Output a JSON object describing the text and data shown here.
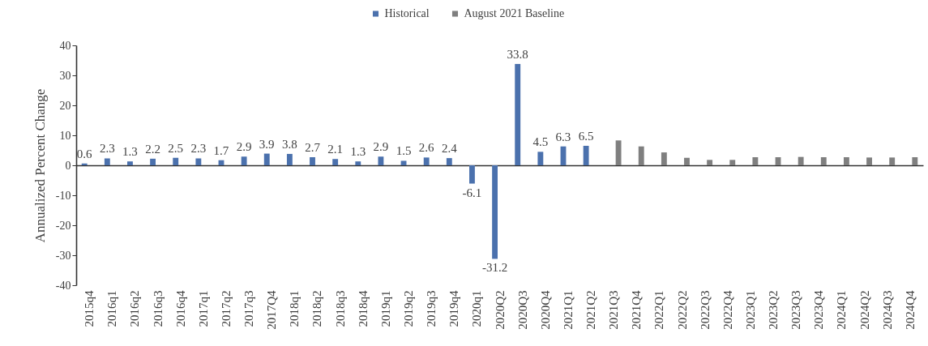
{
  "chart_data": {
    "type": "bar",
    "ylabel": "Annualized Percent Change",
    "categories": [
      "2015q4",
      "2016q1",
      "2016q2",
      "2016q3",
      "2016q4",
      "2017q1",
      "2017q2",
      "2017q3",
      "2017Q4",
      "2018q1",
      "2018q2",
      "2018q3",
      "2018q4",
      "2019q1",
      "2019q2",
      "2019q3",
      "2019q4",
      "2020q1",
      "2020Q2",
      "2020Q3",
      "2020Q4",
      "2021Q1",
      "2021Q2",
      "2021Q3",
      "2021Q4",
      "2022Q1",
      "2022Q2",
      "2022Q3",
      "2022Q4",
      "2023Q1",
      "2023Q2",
      "2023Q3",
      "2023Q4",
      "2024Q1",
      "2024Q2",
      "2024Q3",
      "2024Q4"
    ],
    "series": [
      {
        "name": "Historical",
        "color": "#4b71ad",
        "values": [
          0.6,
          2.3,
          1.3,
          2.2,
          2.5,
          2.3,
          1.7,
          2.9,
          3.9,
          3.8,
          2.7,
          2.1,
          1.3,
          2.9,
          1.5,
          2.6,
          2.4,
          -6.1,
          -31.2,
          33.8,
          4.5,
          6.3,
          6.5,
          null,
          null,
          null,
          null,
          null,
          null,
          null,
          null,
          null,
          null,
          null,
          null,
          null,
          null
        ],
        "value_labels": [
          "0.6",
          "2.3",
          "1.3",
          "2.2",
          "2.5",
          "2.3",
          "1.7",
          "2.9",
          "3.9",
          "3.8",
          "2.7",
          "2.1",
          "1.3",
          "2.9",
          "1.5",
          "2.6",
          "2.4",
          "-6.1",
          "-31.2",
          "33.8",
          "4.5",
          "6.3",
          "6.5",
          null,
          null,
          null,
          null,
          null,
          null,
          null,
          null,
          null,
          null,
          null,
          null,
          null,
          null
        ]
      },
      {
        "name": "August 2021 Baseline",
        "color": "#7f7f7f",
        "values": [
          null,
          null,
          null,
          null,
          null,
          null,
          null,
          null,
          null,
          null,
          null,
          null,
          null,
          null,
          null,
          null,
          null,
          null,
          null,
          null,
          null,
          null,
          null,
          8.3,
          6.3,
          4.3,
          2.5,
          1.8,
          1.8,
          2.7,
          2.7,
          2.8,
          2.7,
          2.7,
          2.6,
          2.6,
          2.7
        ]
      }
    ],
    "ylim": [
      -40,
      40
    ],
    "yticks": [
      -40,
      -30,
      -20,
      -10,
      0,
      10,
      20,
      30,
      40
    ],
    "legend": "top"
  }
}
